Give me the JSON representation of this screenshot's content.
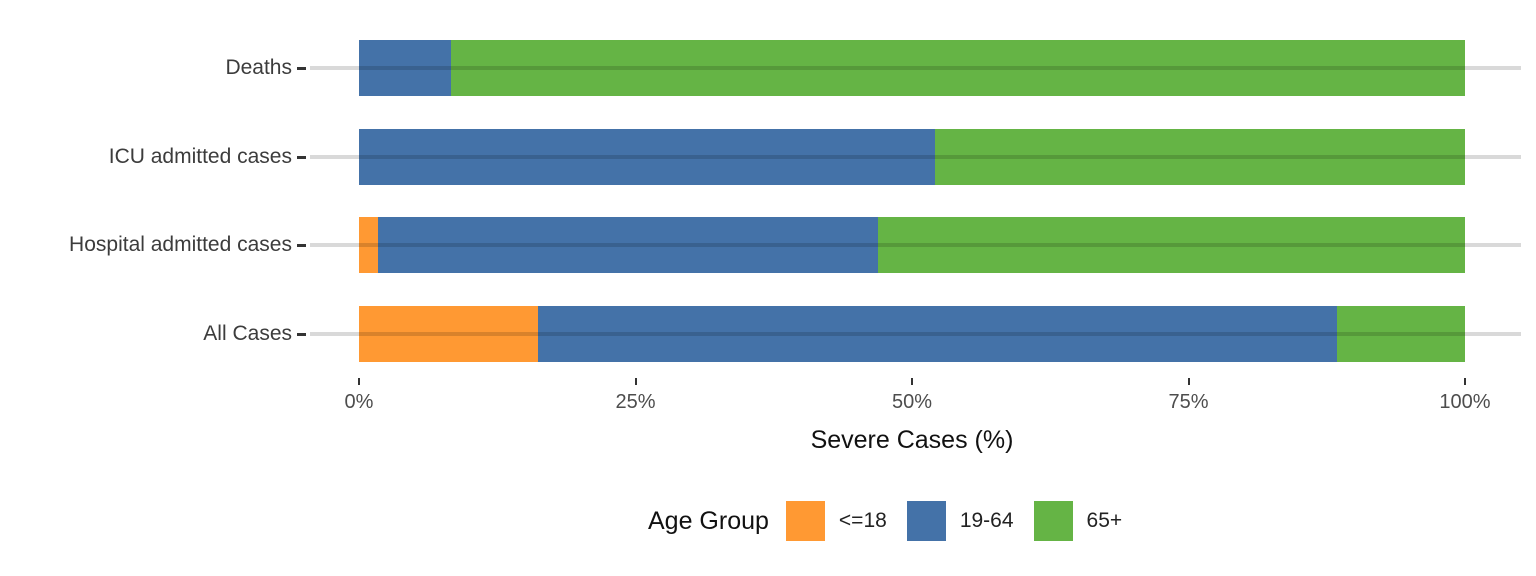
{
  "chart": {
    "xlabel": "Severe Cases (%)",
    "legend_title": "Age Group",
    "background": "#FFFFFF",
    "gridline_color": "#D9D9D9",
    "tick_color": "#333333",
    "axis_text_color": "#4D4D4D",
    "category_label_color": "#3C3C3C"
  },
  "chart_data": {
    "type": "bar",
    "orientation": "horizontal",
    "stacked": true,
    "stack_total": 100,
    "categories": [
      "Deaths",
      "ICU admitted cases",
      "Hospital admitted cases",
      "All Cases"
    ],
    "series": [
      {
        "name": "<=18",
        "color": "#FF9933",
        "values": [
          0,
          0,
          1.7,
          16.2
        ]
      },
      {
        "name": "19-64",
        "color": "#4472A8",
        "values": [
          8.3,
          52.1,
          45.2,
          72.2
        ]
      },
      {
        "name": "65+",
        "color": "#65B445",
        "values": [
          91.7,
          47.9,
          53.1,
          11.6
        ]
      }
    ],
    "title": "",
    "xlabel": "Severe Cases (%)",
    "ylabel": "",
    "xlim": [
      0,
      100
    ],
    "x_ticks": [
      {
        "label": "0%",
        "value": 0
      },
      {
        "label": "25%",
        "value": 25
      },
      {
        "label": "50%",
        "value": 50
      },
      {
        "label": "75%",
        "value": 75
      },
      {
        "label": "100%",
        "value": 100
      }
    ],
    "grid": "major-y-only",
    "legend": {
      "title": "Age Group",
      "position": "bottom",
      "entries": [
        "<=18",
        "19-64",
        "65+"
      ]
    }
  }
}
